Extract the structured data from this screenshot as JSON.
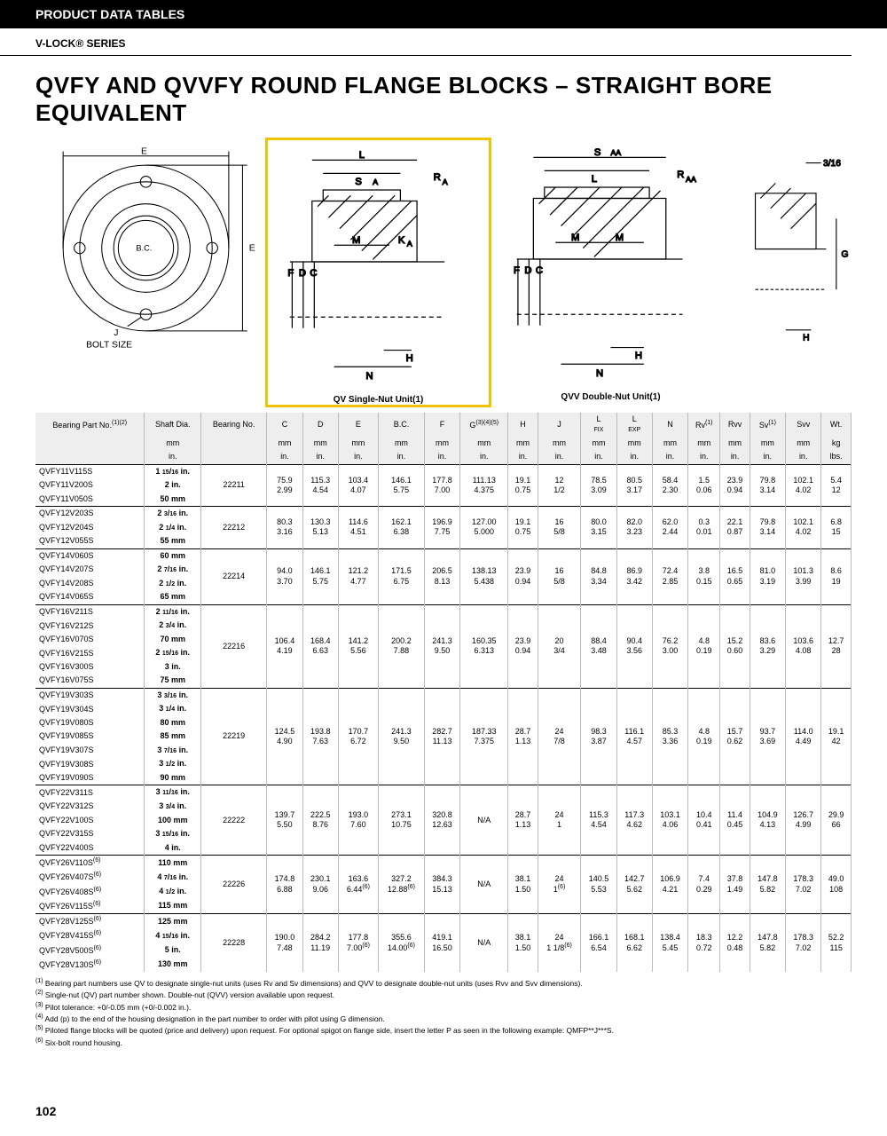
{
  "header": {
    "tab": "PRODUCT DATA TABLES",
    "series": "V-LOCK® SERIES",
    "title": "QVFY AND QVVFY ROUND FLANGE BLOCKS – STRAIGHT BORE EQUIVALENT"
  },
  "diagrams": {
    "front_labels": [
      "E",
      "E",
      "B.C.",
      "J",
      "BOLT SIZE"
    ],
    "single_caption": "QV Single-Nut Unit(1)",
    "double_caption": "QVV Double-Nut Unit(1)",
    "detail_label": "3/16",
    "single_labels": [
      "L",
      "S",
      "R",
      "F",
      "D",
      "C",
      "M",
      "K",
      "H",
      "N",
      "A",
      "A"
    ],
    "double_labels": [
      "S",
      "L",
      "R",
      "F",
      "D",
      "C",
      "M",
      "M",
      "H",
      "N",
      "G",
      "AA",
      "AA"
    ]
  },
  "columns": [
    "Bearing Part No.(1)(2)",
    "Shaft Dia.",
    "Bearing No.",
    "C",
    "D",
    "E",
    "B.C.",
    "F",
    "G(3)(4)(5)",
    "H",
    "J",
    "L FIX",
    "L EXP",
    "N",
    "Rv(1)",
    "Rvv",
    "Sv(1)",
    "Svv",
    "Wt."
  ],
  "unit_rows": [
    [
      "",
      "mm",
      "",
      "mm",
      "mm",
      "mm",
      "mm",
      "mm",
      "mm",
      "mm",
      "mm",
      "mm",
      "mm",
      "mm",
      "mm",
      "mm",
      "mm",
      "mm",
      "kg"
    ],
    [
      "",
      "in.",
      "",
      "in.",
      "in.",
      "in.",
      "in.",
      "in.",
      "in.",
      "in.",
      "in.",
      "in.",
      "in.",
      "in.",
      "in.",
      "in.",
      "in.",
      "in.",
      "lbs."
    ]
  ],
  "groups": [
    {
      "parts": [
        [
          "QVFY11V115S",
          "1 15/16 in."
        ],
        [
          "QVFY11V200S",
          "2 in."
        ],
        [
          "QVFY11V050S",
          "50 mm"
        ]
      ],
      "bearing": "22211",
      "mm": [
        "75.9",
        "115.3",
        "103.4",
        "146.1",
        "177.8",
        "111.13",
        "19.1",
        "12",
        "78.5",
        "80.5",
        "58.4",
        "1.5",
        "23.9",
        "79.8",
        "102.1",
        "5.4"
      ],
      "in": [
        "2.99",
        "4.54",
        "4.07",
        "5.75",
        "7.00",
        "4.375",
        "0.75",
        "1/2",
        "3.09",
        "3.17",
        "2.30",
        "0.06",
        "0.94",
        "3.14",
        "4.02",
        "12"
      ]
    },
    {
      "parts": [
        [
          "QVFY12V203S",
          "2 3/16 in."
        ],
        [
          "QVFY12V204S",
          "2 1/4 in."
        ],
        [
          "QVFY12V055S",
          "55 mm"
        ]
      ],
      "bearing": "22212",
      "mm": [
        "80.3",
        "130.3",
        "114.6",
        "162.1",
        "196.9",
        "127.00",
        "19.1",
        "16",
        "80.0",
        "82.0",
        "62.0",
        "0.3",
        "22.1",
        "79.8",
        "102.1",
        "6.8"
      ],
      "in": [
        "3.16",
        "5.13",
        "4.51",
        "6.38",
        "7.75",
        "5.000",
        "0.75",
        "5/8",
        "3.15",
        "3.23",
        "2.44",
        "0.01",
        "0.87",
        "3.14",
        "4.02",
        "15"
      ]
    },
    {
      "parts": [
        [
          "QVFY14V060S",
          "60 mm"
        ],
        [
          "QVFY14V207S",
          "2 7/16 in."
        ],
        [
          "QVFY14V208S",
          "2 1/2 in."
        ],
        [
          "QVFY14V065S",
          "65 mm"
        ]
      ],
      "bearing": "22214",
      "mm": [
        "94.0",
        "146.1",
        "121.2",
        "171.5",
        "206.5",
        "138.13",
        "23.9",
        "16",
        "84.8",
        "86.9",
        "72.4",
        "3.8",
        "16.5",
        "81.0",
        "101.3",
        "8.6"
      ],
      "in": [
        "3.70",
        "5.75",
        "4.77",
        "6.75",
        "8.13",
        "5.438",
        "0.94",
        "5/8",
        "3.34",
        "3.42",
        "2.85",
        "0.15",
        "0.65",
        "3.19",
        "3.99",
        "19"
      ]
    },
    {
      "parts": [
        [
          "QVFY16V211S",
          "2 11/16 in."
        ],
        [
          "QVFY16V212S",
          "2 3/4 in."
        ],
        [
          "QVFY16V070S",
          "70 mm"
        ],
        [
          "QVFY16V215S",
          "2 15/16 in."
        ],
        [
          "QVFY16V300S",
          "3 in."
        ],
        [
          "QVFY16V075S",
          "75 mm"
        ]
      ],
      "bearing": "22216",
      "mm": [
        "106.4",
        "168.4",
        "141.2",
        "200.2",
        "241.3",
        "160.35",
        "23.9",
        "20",
        "88.4",
        "90.4",
        "76.2",
        "4.8",
        "15.2",
        "83.6",
        "103.6",
        "12.7"
      ],
      "in": [
        "4.19",
        "6.63",
        "5.56",
        "7.88",
        "9.50",
        "6.313",
        "0.94",
        "3/4",
        "3.48",
        "3.56",
        "3.00",
        "0.19",
        "0.60",
        "3.29",
        "4.08",
        "28"
      ]
    },
    {
      "parts": [
        [
          "QVFY19V303S",
          "3 3/16 in."
        ],
        [
          "QVFY19V304S",
          "3 1/4 in."
        ],
        [
          "QVFY19V080S",
          "80 mm"
        ],
        [
          "QVFY19V085S",
          "85 mm"
        ],
        [
          "QVFY19V307S",
          "3 7/16 in."
        ],
        [
          "QVFY19V308S",
          "3 1/2 in."
        ],
        [
          "QVFY19V090S",
          "90 mm"
        ]
      ],
      "bearing": "22219",
      "mm": [
        "124.5",
        "193.8",
        "170.7",
        "241.3",
        "282.7",
        "187.33",
        "28.7",
        "24",
        "98.3",
        "116.1",
        "85.3",
        "4.8",
        "15.7",
        "93.7",
        "114.0",
        "19.1"
      ],
      "in": [
        "4.90",
        "7.63",
        "6.72",
        "9.50",
        "11.13",
        "7.375",
        "1.13",
        "7/8",
        "3.87",
        "4.57",
        "3.36",
        "0.19",
        "0.62",
        "3.69",
        "4.49",
        "42"
      ]
    },
    {
      "parts": [
        [
          "QVFY22V311S",
          "3 11/16 in."
        ],
        [
          "QVFY22V312S",
          "3 3/4 in."
        ],
        [
          "QVFY22V100S",
          "100 mm"
        ],
        [
          "QVFY22V315S",
          "3 15/16 in."
        ],
        [
          "QVFY22V400S",
          "4 in."
        ]
      ],
      "bearing": "22222",
      "mm": [
        "139.7",
        "222.5",
        "193.0",
        "273.1",
        "320.8",
        "N/A",
        "28.7",
        "24",
        "115.3",
        "117.3",
        "103.1",
        "10.4",
        "11.4",
        "104.9",
        "126.7",
        "29.9"
      ],
      "in": [
        "5.50",
        "8.76",
        "7.60",
        "10.75",
        "12.63",
        "",
        "1.13",
        "1",
        "4.54",
        "4.62",
        "4.06",
        "0.41",
        "0.45",
        "4.13",
        "4.99",
        "66"
      ]
    },
    {
      "parts": [
        [
          "QVFY26V110S(6)",
          "110 mm"
        ],
        [
          "QVFY26V407S(6)",
          "4 7/16 in."
        ],
        [
          "QVFY26V408S(6)",
          "4 1/2 in."
        ],
        [
          "QVFY26V115S(6)",
          "115 mm"
        ]
      ],
      "bearing": "22226",
      "mm": [
        "174.8",
        "230.1",
        "163.6",
        "327.2",
        "384.3",
        "N/A",
        "38.1",
        "24",
        "140.5",
        "142.7",
        "106.9",
        "7.4",
        "37.8",
        "147.8",
        "178.3",
        "49.0"
      ],
      "in": [
        "6.88",
        "9.06",
        "6.44(6)",
        "12.88(6)",
        "15.13",
        "",
        "1.50",
        "1(6)",
        "5.53",
        "5.62",
        "4.21",
        "0.29",
        "1.49",
        "5.82",
        "7.02",
        "108"
      ]
    },
    {
      "parts": [
        [
          "QVFY28V125S(6)",
          "125 mm"
        ],
        [
          "QVFY28V415S(6)",
          "4 15/16 in."
        ],
        [
          "QVFY28V500S(6)",
          "5 in."
        ],
        [
          "QVFY28V130S(6)",
          "130 mm"
        ]
      ],
      "bearing": "22228",
      "mm": [
        "190.0",
        "284.2",
        "177.8",
        "355.6",
        "419.1",
        "N/A",
        "38.1",
        "24",
        "166.1",
        "168.1",
        "138.4",
        "18.3",
        "12.2",
        "147.8",
        "178.3",
        "52.2"
      ],
      "in": [
        "7.48",
        "11.19",
        "7.00(6)",
        "14.00(6)",
        "16.50",
        "",
        "1.50",
        "1 1/8(6)",
        "6.54",
        "6.62",
        "5.45",
        "0.72",
        "0.48",
        "5.82",
        "7.02",
        "115"
      ]
    }
  ],
  "footnotes": [
    "(1) Bearing part numbers use QV to designate single-nut units (uses Rv and Sv dimensions) and QVV to designate double-nut units (uses Rvv and Svv dimensions).",
    "(2) Single-nut (QV) part number shown. Double-nut (QVV) version available upon request.",
    "(3) Pilot tolerance: +0/-0.05 mm (+0/-0.002 in.).",
    "(4) Add (p) to the end of the housing designation in the part number to order with pilot using G dimension.",
    "(5) Piloted flange blocks will be quoted (price and delivery) upon request. For optional spigot on flange side, insert the letter P as seen in the following example: QMFP**J***S.",
    "(6) Six-bolt round housing."
  ],
  "page_number": "102"
}
